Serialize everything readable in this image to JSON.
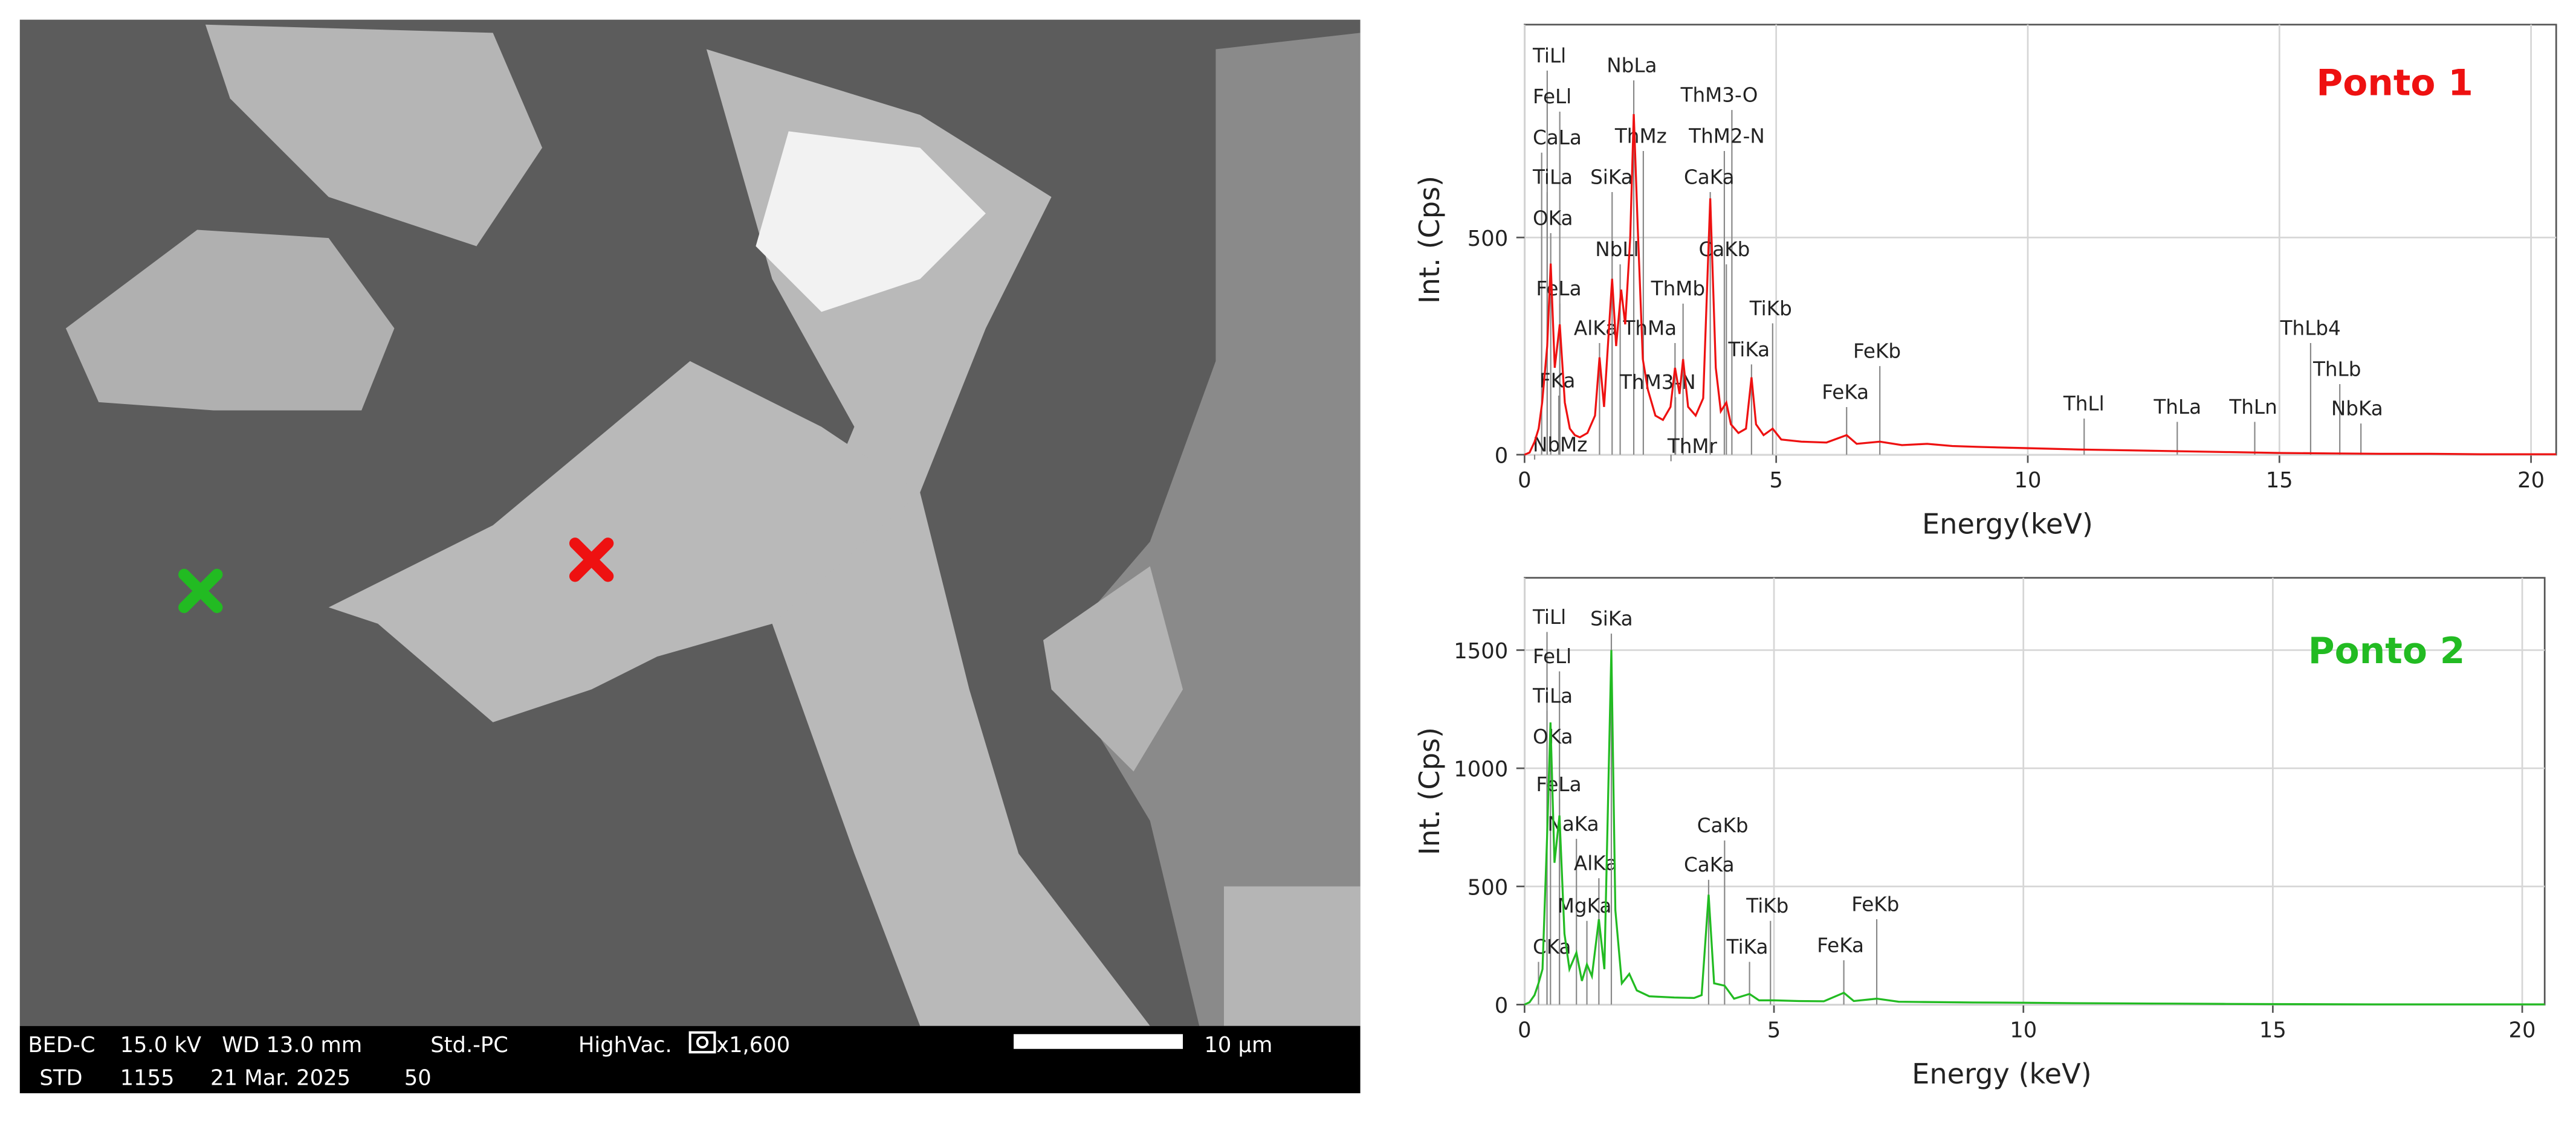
{
  "micrograph": {
    "info": [
      "BED-C",
      "15.0 kV",
      "WD 13.0 mm",
      "Std.-PC",
      "HighVac.",
      "x1,600",
      "STD",
      "1155",
      "21 Mar. 2025",
      "50"
    ],
    "scale_bar": "10 µm"
  },
  "chart_data": [
    {
      "type": "line",
      "title": "Ponto 1",
      "title_color": "#ee1111",
      "color": "#ee1111",
      "x_label": "Energy(keV)",
      "y_label": "Int. (Cps)",
      "xlim": [
        0,
        20.5
      ],
      "ylim": [
        0,
        990
      ],
      "xticks": [
        0,
        5,
        10,
        15,
        20
      ],
      "yticks": [
        0,
        500
      ],
      "grid": true,
      "x": [
        0,
        0.1,
        0.2,
        0.28,
        0.35,
        0.45,
        0.52,
        0.6,
        0.7,
        0.8,
        0.9,
        1.0,
        1.1,
        1.25,
        1.4,
        1.49,
        1.58,
        1.74,
        1.82,
        1.92,
        2.0,
        2.1,
        2.17,
        2.25,
        2.35,
        2.45,
        2.6,
        2.75,
        2.9,
        2.99,
        3.08,
        3.15,
        3.25,
        3.4,
        3.55,
        3.69,
        3.8,
        3.9,
        4.01,
        4.1,
        4.25,
        4.4,
        4.51,
        4.6,
        4.75,
        4.93,
        5.1,
        5.5,
        6.0,
        6.4,
        6.6,
        7.06,
        7.5,
        8.0,
        8.5,
        9,
        10,
        11,
        12,
        13,
        14,
        15,
        16,
        17,
        18,
        19,
        20.5
      ],
      "values": [
        0,
        5,
        30,
        60,
        120,
        250,
        440,
        200,
        300,
        120,
        60,
        45,
        40,
        50,
        90,
        224,
        110,
        405,
        250,
        380,
        300,
        500,
        784,
        520,
        220,
        150,
        90,
        80,
        110,
        200,
        140,
        220,
        110,
        90,
        130,
        590,
        200,
        100,
        120,
        70,
        50,
        60,
        178,
        70,
        45,
        60,
        35,
        30,
        28,
        45,
        25,
        30,
        22,
        25,
        20,
        18,
        15,
        12,
        10,
        8,
        6,
        4,
        3,
        2,
        2,
        1,
        1
      ],
      "peaks": [
        {
          "label": "TiLl",
          "energy": 0.45
        },
        {
          "label": "FeLl",
          "energy": 0.7
        },
        {
          "label": "CaLa",
          "energy": 0.34
        },
        {
          "label": "TiLa",
          "energy": 0.45
        },
        {
          "label": "OKa",
          "energy": 0.52
        },
        {
          "label": "FeLa",
          "energy": 0.7
        },
        {
          "label": "FKa",
          "energy": 0.68
        },
        {
          "label": "NbMz",
          "energy": 0.2
        },
        {
          "label": "AlKa",
          "energy": 1.49
        },
        {
          "label": "SiKa",
          "energy": 1.74
        },
        {
          "label": "NbLl",
          "energy": 1.9
        },
        {
          "label": "NbLa",
          "energy": 2.17
        },
        {
          "label": "ThMz",
          "energy": 2.36
        },
        {
          "label": "ThM3-N",
          "energy": 3.0
        },
        {
          "label": "ThMa",
          "energy": 2.99
        },
        {
          "label": "ThMb",
          "energy": 3.15
        },
        {
          "label": "ThMr",
          "energy": 2.91
        },
        {
          "label": "ThM3-O",
          "energy": 4.12
        },
        {
          "label": "ThM2-N",
          "energy": 3.97
        },
        {
          "label": "CaKa",
          "energy": 3.69
        },
        {
          "label": "CaKb",
          "energy": 4.01
        },
        {
          "label": "TiKa",
          "energy": 4.51
        },
        {
          "label": "TiKb",
          "energy": 4.93
        },
        {
          "label": "FeKa",
          "energy": 6.4
        },
        {
          "label": "FeKb",
          "energy": 7.06
        },
        {
          "label": "ThLl",
          "energy": 11.12
        },
        {
          "label": "ThLa",
          "energy": 12.97
        },
        {
          "label": "ThLn",
          "energy": 14.51
        },
        {
          "label": "ThLb4",
          "energy": 15.62
        },
        {
          "label": "ThLb",
          "energy": 16.2
        },
        {
          "label": "NbKa",
          "energy": 16.62
        }
      ]
    },
    {
      "type": "line",
      "title": "Ponto 2",
      "title_color": "#22bb22",
      "color": "#22bb22",
      "x_label": "Energy (keV)",
      "y_label": "Int. (Cps)",
      "xlim": [
        0,
        20.45
      ],
      "ylim": [
        0,
        1806
      ],
      "xticks": [
        0,
        5,
        10,
        15,
        20
      ],
      "yticks": [
        0,
        500,
        1000,
        1500
      ],
      "grid": true,
      "x": [
        0,
        0.1,
        0.2,
        0.28,
        0.36,
        0.45,
        0.52,
        0.6,
        0.7,
        0.8,
        0.9,
        1.04,
        1.15,
        1.25,
        1.35,
        1.49,
        1.6,
        1.74,
        1.82,
        1.95,
        2.1,
        2.25,
        2.5,
        3.0,
        3.4,
        3.55,
        3.69,
        3.8,
        4.01,
        4.2,
        4.51,
        4.7,
        5,
        5.5,
        6,
        6.4,
        6.6,
        7.06,
        7.5,
        8,
        9,
        10,
        11,
        12,
        13,
        14,
        15,
        17,
        20.45
      ],
      "values": [
        0,
        10,
        40,
        90,
        150,
        700,
        1194,
        600,
        800,
        300,
        150,
        220,
        100,
        170,
        120,
        361,
        150,
        1500,
        400,
        90,
        130,
        60,
        35,
        30,
        28,
        40,
        465,
        90,
        80,
        25,
        45,
        18,
        18,
        15,
        14,
        50,
        15,
        25,
        12,
        11,
        9,
        8,
        6,
        5,
        4,
        3,
        2,
        1,
        1
      ],
      "peaks": [
        {
          "label": "TiLl",
          "energy": 0.45
        },
        {
          "label": "FeLl",
          "energy": 0.7
        },
        {
          "label": "TiLa",
          "energy": 0.45
        },
        {
          "label": "OKa",
          "energy": 0.52
        },
        {
          "label": "FeLa",
          "energy": 0.7
        },
        {
          "label": "NaKa",
          "energy": 1.04
        },
        {
          "label": "AlKa",
          "energy": 1.49
        },
        {
          "label": "MgKa",
          "energy": 1.25
        },
        {
          "label": "CKa",
          "energy": 0.28
        },
        {
          "label": "SiKa",
          "energy": 1.74
        },
        {
          "label": "CaKb",
          "energy": 4.01
        },
        {
          "label": "CaKa",
          "energy": 3.69
        },
        {
          "label": "TiKb",
          "energy": 4.93
        },
        {
          "label": "TiKa",
          "energy": 4.51
        },
        {
          "label": "FeKb",
          "energy": 7.06
        },
        {
          "label": "FeKa",
          "energy": 6.4
        }
      ]
    }
  ]
}
